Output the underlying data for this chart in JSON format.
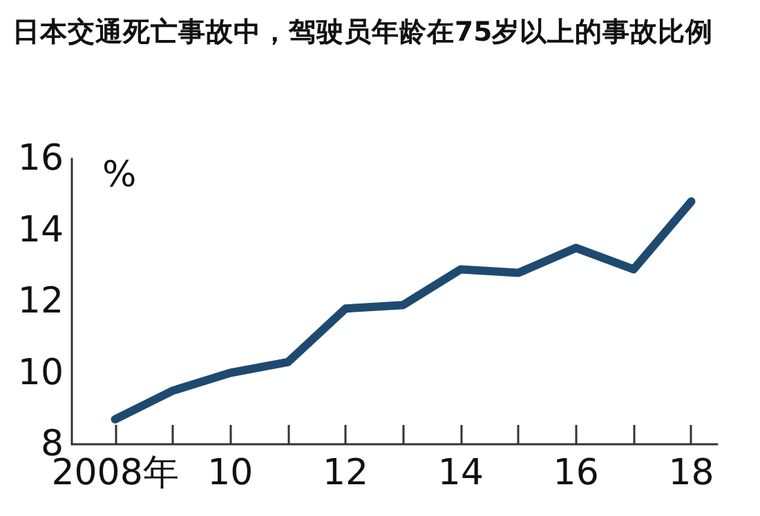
{
  "chart_data": {
    "type": "line",
    "title": "日本交通死亡事故中，驾驶员年龄在75岁以上的事故比例",
    "ylabel": "%",
    "x": [
      2008,
      2009,
      2010,
      2011,
      2012,
      2013,
      2014,
      2015,
      2016,
      2017,
      2018
    ],
    "series": [
      {
        "color": "#1f4a70",
        "values": [
          8.7,
          9.5,
          10.0,
          10.3,
          11.8,
          11.9,
          12.9,
          12.8,
          13.5,
          12.9,
          14.8
        ]
      }
    ],
    "xlim": [
      2007.25,
      2018.45
    ],
    "xticks": [
      {
        "value": 2008,
        "label": "2008年"
      },
      {
        "value": 2009,
        "label": null
      },
      {
        "value": 2010,
        "label": "10"
      },
      {
        "value": 2011,
        "label": null
      },
      {
        "value": 2012,
        "label": "12"
      },
      {
        "value": 2013,
        "label": null
      },
      {
        "value": 2014,
        "label": "14"
      },
      {
        "value": 2015,
        "label": null
      },
      {
        "value": 2016,
        "label": "16"
      },
      {
        "value": 2017,
        "label": null
      },
      {
        "value": 2018,
        "label": "18"
      }
    ],
    "ylim": [
      8,
      16
    ],
    "yticks": [
      8,
      10,
      12,
      14,
      16
    ],
    "marker": "none",
    "line_style": "solid"
  }
}
